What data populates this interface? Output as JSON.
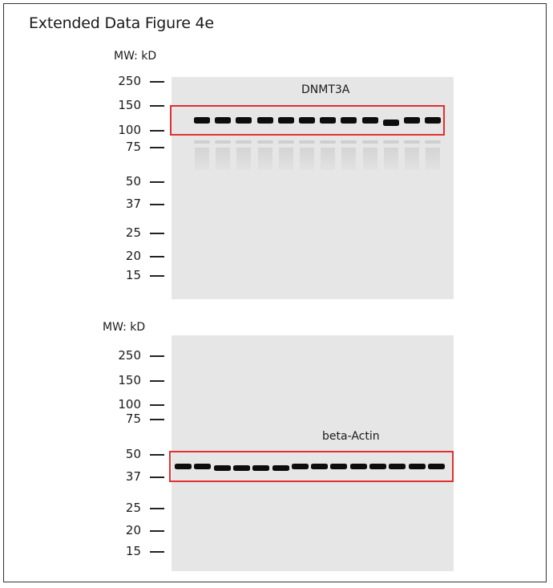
{
  "figure": {
    "title": "Extended Data Figure 4e"
  },
  "blots": [
    {
      "mw_header": "MW: kD",
      "protein": "DNMT3A",
      "markers": [
        "250",
        "150",
        "100",
        "75",
        "50",
        "37",
        "25",
        "20",
        "15"
      ],
      "lanes": 12
    },
    {
      "mw_header": "MW: kD",
      "protein": "beta-Actin",
      "markers": [
        "250",
        "150",
        "100",
        "75",
        "50",
        "37",
        "25",
        "20",
        "15"
      ],
      "lanes": 14
    }
  ],
  "colors": {
    "box": "#e23030",
    "band": "#0d0d0d",
    "membrane": "#e6e6e6"
  }
}
